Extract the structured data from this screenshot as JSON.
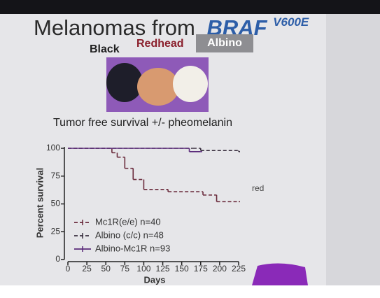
{
  "slide": {
    "title": "Melanomas from",
    "title_gene": "BRAF",
    "title_superscript": "V600E",
    "labels": [
      "Black",
      "Redhead",
      "Albino"
    ]
  },
  "chart_data": {
    "type": "line",
    "step": true,
    "title": "Tumor free survival +/- pheomelanin",
    "xlabel": "Days",
    "ylabel": "Percent survival",
    "annotations": [
      "red"
    ],
    "xlim": [
      0,
      225
    ],
    "xticks": [
      0,
      25,
      50,
      75,
      100,
      125,
      150,
      175,
      200,
      225
    ],
    "ylim": [
      0,
      100
    ],
    "yticks": [
      0,
      25,
      50,
      75,
      100
    ],
    "legend": "lower-left",
    "series": [
      {
        "name": "Mc1R(e/e) n=40",
        "color": "#6a2b3c",
        "style": "dashed",
        "x": [
          0,
          58,
          65,
          75,
          86,
          100,
          132,
          178,
          196,
          225
        ],
        "values": [
          100,
          96,
          92,
          82,
          72,
          63,
          61,
          58,
          52,
          52
        ]
      },
      {
        "name": "Albino (c/c) n=48",
        "color": "#3a3040",
        "style": "dashed",
        "x": [
          0,
          165,
          175,
          225
        ],
        "values": [
          100,
          100,
          98,
          97
        ]
      },
      {
        "name": "Albino-Mc1R n=93",
        "color": "#5a2a7a",
        "style": "solid",
        "x": [
          0,
          160,
          175
        ],
        "values": [
          100,
          97,
          97
        ]
      }
    ]
  }
}
